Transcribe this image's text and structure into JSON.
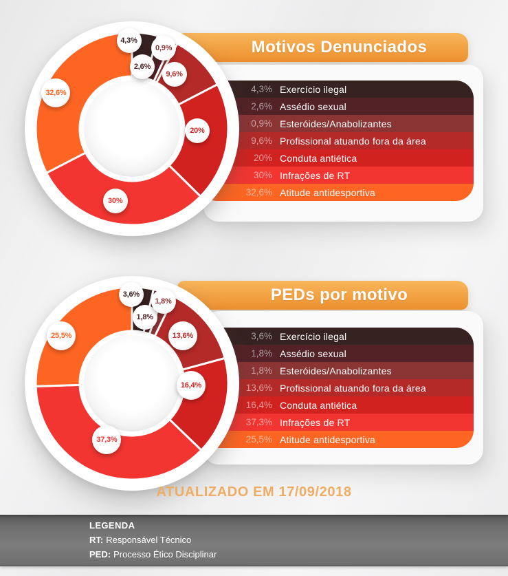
{
  "page": {
    "updated": "ATUALIZADO EM 17/09/2018"
  },
  "palette": {
    "category_colors": [
      "#362221",
      "#522226",
      "#8b3434",
      "#b32a28",
      "#d22220",
      "#f23531",
      "#fe6522"
    ],
    "banner_gradient_top": "#f8b65c",
    "banner_gradient_bottom": "#ed9030",
    "date_color": "#efac63",
    "legend_bar_gray": "#6f6f6f",
    "bubble_bg": "#ffffff",
    "card_bg": "#fafafb"
  },
  "chart_data": [
    {
      "type": "pie",
      "subtype": "donut",
      "title": "Motivos Denunciados",
      "categories": [
        "Exercício ilegal",
        "Assédio sexual",
        "Esteróides/Anabolizantes",
        "Profissional atuando fora da área",
        "Conduta antiética",
        "Infrações de RT",
        "Atitude antidesportiva"
      ],
      "values": [
        4.3,
        2.6,
        0.9,
        9.6,
        20,
        30,
        32.6
      ],
      "value_labels": [
        "4,3%",
        "2,6%",
        "0,9%",
        "9,6%",
        "20%",
        "30%",
        "32,6%"
      ],
      "colors": [
        "#362221",
        "#522226",
        "#8b3434",
        "#b32a28",
        "#d22220",
        "#f23531",
        "#fe6522"
      ],
      "start_angle_deg": 0,
      "direction": "clockwise",
      "legend_position": "right"
    },
    {
      "type": "pie",
      "subtype": "donut",
      "title": "PEDs por motivo",
      "categories": [
        "Exercício ilegal",
        "Assédio sexual",
        "Esteróides/Anabolizantes",
        "Profissional atuando fora da área",
        "Conduta antiética",
        "Infrações de RT",
        "Atitude antidesportiva"
      ],
      "values": [
        3.6,
        1.8,
        1.8,
        13.6,
        16.4,
        37.3,
        25.5
      ],
      "value_labels": [
        "3,6%",
        "1,8%",
        "1,8%",
        "13,6%",
        "16,4%",
        "37,3%",
        "25,5%"
      ],
      "colors": [
        "#362221",
        "#522226",
        "#8b3434",
        "#b32a28",
        "#d22220",
        "#f23531",
        "#fe6522"
      ],
      "start_angle_deg": 0,
      "direction": "clockwise",
      "legend_position": "right"
    }
  ],
  "footer": {
    "legend_title": "LEGENDA",
    "entries": [
      {
        "abbr": "RT:",
        "text": "Responsável Técnico"
      },
      {
        "abbr": "PED:",
        "text": "Processo Ético Disciplinar"
      }
    ]
  }
}
